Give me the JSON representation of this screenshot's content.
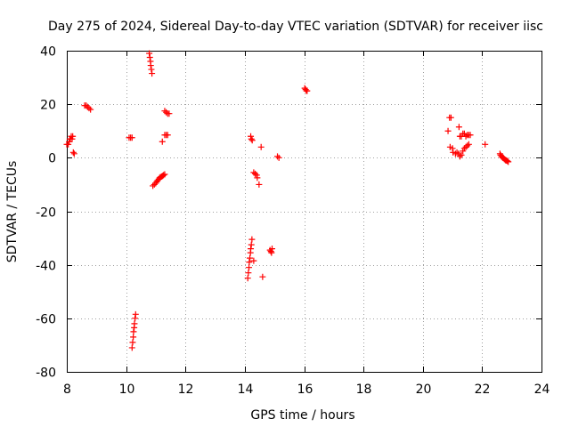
{
  "chart_data": {
    "type": "scatter",
    "title": "Day 275 of 2024, Sidereal Day-to-day VTEC variation (SDTVAR) for receiver iisc",
    "xlabel": "GPS time / hours",
    "ylabel": "SDTVAR / TECUs",
    "xlim": [
      8,
      24
    ],
    "ylim": [
      -80,
      40
    ],
    "xticks": [
      8,
      10,
      12,
      14,
      16,
      18,
      20,
      22,
      24
    ],
    "yticks": [
      -80,
      -60,
      -40,
      -20,
      0,
      20,
      40
    ],
    "grid": true,
    "marker": "+",
    "marker_color": "#ff0000",
    "series": [
      {
        "name": "SDTVAR",
        "points": [
          [
            8.0,
            5
          ],
          [
            8.05,
            5
          ],
          [
            8.08,
            6
          ],
          [
            8.1,
            7
          ],
          [
            8.12,
            7
          ],
          [
            8.15,
            8
          ],
          [
            8.18,
            7
          ],
          [
            8.2,
            8
          ],
          [
            8.22,
            2
          ],
          [
            8.25,
            1.5
          ],
          [
            8.6,
            19.5
          ],
          [
            8.65,
            19.5
          ],
          [
            8.7,
            19
          ],
          [
            8.75,
            18.5
          ],
          [
            8.8,
            18
          ],
          [
            10.1,
            7.5
          ],
          [
            10.15,
            7.5
          ],
          [
            10.2,
            7.5
          ],
          [
            10.2,
            -71
          ],
          [
            10.22,
            -69
          ],
          [
            10.24,
            -67
          ],
          [
            10.25,
            -65
          ],
          [
            10.27,
            -63.5
          ],
          [
            10.28,
            -62
          ],
          [
            10.3,
            -60
          ],
          [
            10.32,
            -58.5
          ],
          [
            10.78,
            39
          ],
          [
            10.8,
            37.5
          ],
          [
            10.82,
            36
          ],
          [
            10.83,
            34.5
          ],
          [
            10.85,
            33
          ],
          [
            10.87,
            31.5
          ],
          [
            10.9,
            -10.5
          ],
          [
            10.95,
            -10
          ],
          [
            11.0,
            -9.5
          ],
          [
            11.03,
            -9
          ],
          [
            11.06,
            -8.5
          ],
          [
            11.1,
            -8
          ],
          [
            11.13,
            -7.5
          ],
          [
            11.16,
            -7.2
          ],
          [
            11.2,
            -7
          ],
          [
            11.23,
            -6.8
          ],
          [
            11.26,
            -6.5
          ],
          [
            11.3,
            -6.2
          ],
          [
            11.22,
            6
          ],
          [
            11.3,
            8.5
          ],
          [
            11.35,
            8.5
          ],
          [
            11.4,
            8.5
          ],
          [
            11.3,
            17.5
          ],
          [
            11.35,
            17
          ],
          [
            11.4,
            16.5
          ],
          [
            11.45,
            16.5
          ],
          [
            14.1,
            -45
          ],
          [
            14.12,
            -43
          ],
          [
            14.14,
            -41
          ],
          [
            14.15,
            -39
          ],
          [
            14.17,
            -37.5
          ],
          [
            14.19,
            -35.5
          ],
          [
            14.2,
            -34
          ],
          [
            14.22,
            -32.5
          ],
          [
            14.24,
            -30.5
          ],
          [
            14.3,
            -38.5
          ],
          [
            14.2,
            8
          ],
          [
            14.22,
            7
          ],
          [
            14.25,
            6.5
          ],
          [
            14.3,
            -5.5
          ],
          [
            14.35,
            -6
          ],
          [
            14.4,
            -6.5
          ],
          [
            14.42,
            -7.5
          ],
          [
            14.48,
            -10
          ],
          [
            14.55,
            4
          ],
          [
            14.6,
            -44.5
          ],
          [
            14.85,
            -34.5
          ],
          [
            14.88,
            -35
          ],
          [
            14.9,
            -35.5
          ],
          [
            14.92,
            -34
          ],
          [
            15.1,
            0.5
          ],
          [
            15.15,
            0
          ],
          [
            16.02,
            26
          ],
          [
            16.05,
            25.5
          ],
          [
            16.08,
            25
          ],
          [
            16.1,
            25
          ],
          [
            20.85,
            10
          ],
          [
            20.9,
            15
          ],
          [
            20.95,
            15
          ],
          [
            20.92,
            4
          ],
          [
            21.0,
            3.5
          ],
          [
            21.02,
            2
          ],
          [
            21.1,
            1.5
          ],
          [
            21.15,
            2
          ],
          [
            21.2,
            1.5
          ],
          [
            21.22,
            11.5
          ],
          [
            21.25,
            8
          ],
          [
            21.3,
            8
          ],
          [
            21.35,
            9
          ],
          [
            21.4,
            9
          ],
          [
            21.45,
            8
          ],
          [
            21.5,
            8.5
          ],
          [
            21.55,
            8.5
          ],
          [
            21.6,
            8.5
          ],
          [
            21.25,
            0.5
          ],
          [
            21.3,
            1
          ],
          [
            21.35,
            2.5
          ],
          [
            21.4,
            3.5
          ],
          [
            21.45,
            4
          ],
          [
            21.5,
            4.5
          ],
          [
            21.55,
            5
          ],
          [
            22.1,
            5
          ],
          [
            22.6,
            1.5
          ],
          [
            22.62,
            1
          ],
          [
            22.65,
            0.5
          ],
          [
            22.68,
            0.2
          ],
          [
            22.7,
            0
          ],
          [
            22.72,
            -0.2
          ],
          [
            22.75,
            -0.5
          ],
          [
            22.78,
            -0.8
          ],
          [
            22.8,
            -1
          ],
          [
            22.82,
            -1
          ],
          [
            22.85,
            -1.2
          ],
          [
            22.88,
            -1.5
          ]
        ]
      }
    ]
  }
}
